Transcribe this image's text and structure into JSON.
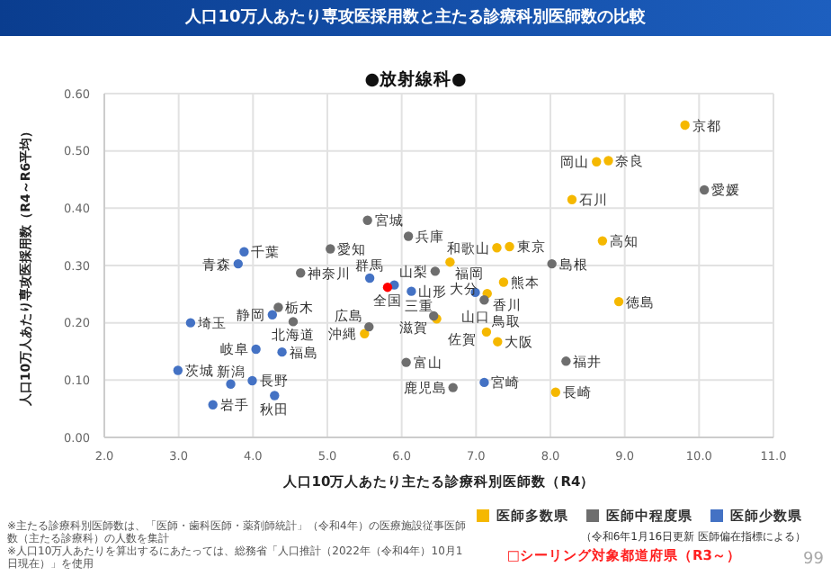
{
  "chart_data": {
    "type": "scatter",
    "title": "人口10万人あたり専攻医採用数と主たる診療科別医師数の比較",
    "subtitle": "●放射線科●",
    "xlabel": "人口10万人あたり主たる診療科別医師数（R4）",
    "ylabel": "人口10万人あたり専攻医採用数（R4～R6平均）",
    "xlim": [
      2,
      11
    ],
    "xticks": [
      {
        "value": 2,
        "label": "2.0"
      },
      {
        "value": 3,
        "label": "3.0"
      },
      {
        "value": 4,
        "label": "4.0"
      },
      {
        "value": 5,
        "label": "5.0"
      },
      {
        "value": 6,
        "label": "6.0"
      },
      {
        "value": 7,
        "label": "7.0"
      },
      {
        "value": 8,
        "label": "8.0"
      },
      {
        "value": 9,
        "label": "9.0"
      },
      {
        "value": 10,
        "label": "10.0"
      },
      {
        "value": 11,
        "label": "11.0"
      }
    ],
    "ylim": [
      0,
      0.6
    ],
    "yticks": [
      {
        "value": 0,
        "label": "0.00"
      },
      {
        "value": 0.1,
        "label": "0.10"
      },
      {
        "value": 0.2,
        "label": "0.20"
      },
      {
        "value": 0.3,
        "label": "0.30"
      },
      {
        "value": 0.4,
        "label": "0.40"
      },
      {
        "value": 0.5,
        "label": "0.50"
      },
      {
        "value": 0.6,
        "label": "0.60"
      }
    ],
    "grid": true,
    "legend": "bottom right",
    "marker": "circle",
    "series": [
      {
        "name": "医師多数県",
        "color": "#f5b800",
        "x": [
          6.65,
          9.81,
          8.62,
          8.78,
          8.29,
          8.7,
          7.45,
          7.28,
          7.37,
          7.15,
          8.92,
          7.14,
          7.29,
          8.07,
          6.47,
          5.5
        ],
        "values": [
          0.306,
          0.545,
          0.481,
          0.483,
          0.415,
          0.343,
          0.333,
          0.331,
          0.271,
          0.251,
          0.237,
          0.184,
          0.167,
          0.079,
          0.207,
          0.181
        ]
      },
      {
        "name": "医師中程度県",
        "color": "#6e6e6e",
        "x": [
          5.54,
          6.09,
          5.04,
          4.64,
          6.45,
          10.07,
          8.02,
          7.11,
          8.21,
          6.43,
          6.69,
          4.34,
          4.54,
          5.56,
          6.06
        ],
        "values": [
          0.379,
          0.351,
          0.329,
          0.287,
          0.29,
          0.432,
          0.303,
          0.24,
          0.133,
          0.212,
          0.087,
          0.227,
          0.202,
          0.193,
          0.131
        ]
      },
      {
        "name": "医師少数県",
        "color": "#4472c4",
        "x": [
          3.88,
          3.8,
          5.57,
          5.9,
          6.13,
          6.99,
          7.11,
          4.26,
          3.16,
          4.04,
          4.39,
          2.99,
          3.7,
          3.99,
          4.29,
          3.46
        ],
        "values": [
          0.324,
          0.303,
          0.278,
          0.266,
          0.255,
          0.253,
          0.096,
          0.214,
          0.2,
          0.154,
          0.149,
          0.117,
          0.093,
          0.099,
          0.073,
          0.057
        ]
      },
      {
        "color": "#ff0000",
        "x": [
          5.81
        ],
        "values": [
          0.262
        ]
      }
    ],
    "annotations": [
      "※主たる診療科別医師数は、「医師・歯科医師・薬剤師統計」（令和4年）の医療施設従事医師数（主たる診療科）の人数を集計",
      "※人口10万人あたりを算出するにあたっては、総務省「人口推計（2022年（令和4年）10月1日現在）」を使用",
      "（令和6年1月16日更新 医師偏在指標による）",
      "□シーリング対象都道府県（R3～）",
      "99",
      {
        "text": "全国",
        "x": 5.81,
        "y": 0.262
      },
      {
        "text": "京都",
        "x": 9.81,
        "y": 0.545
      },
      {
        "text": "岡山",
        "x": 8.62,
        "y": 0.481
      },
      {
        "text": "奈良",
        "x": 8.78,
        "y": 0.483
      },
      {
        "text": "愛媛",
        "x": 10.07,
        "y": 0.432
      },
      {
        "text": "石川",
        "x": 8.29,
        "y": 0.415
      },
      {
        "text": "宮城",
        "x": 5.54,
        "y": 0.379
      },
      {
        "text": "兵庫",
        "x": 6.09,
        "y": 0.351
      },
      {
        "text": "高知",
        "x": 8.7,
        "y": 0.343
      },
      {
        "text": "東京",
        "x": 7.45,
        "y": 0.333
      },
      {
        "text": "和歌山",
        "x": 7.28,
        "y": 0.331
      },
      {
        "text": "愛知",
        "x": 5.04,
        "y": 0.329
      },
      {
        "text": "千葉",
        "x": 3.88,
        "y": 0.324
      },
      {
        "text": "福岡",
        "x": 6.65,
        "y": 0.306
      },
      {
        "text": "青森",
        "x": 3.8,
        "y": 0.303
      },
      {
        "text": "島根",
        "x": 8.02,
        "y": 0.303
      },
      {
        "text": "山梨",
        "x": 6.45,
        "y": 0.29
      },
      {
        "text": "神奈川",
        "x": 4.64,
        "y": 0.287
      },
      {
        "text": "群馬",
        "x": 5.57,
        "y": 0.278
      },
      {
        "text": "熊本",
        "x": 7.37,
        "y": 0.271
      },
      {
        "text": "三重",
        "x": 5.9,
        "y": 0.266
      },
      {
        "text": "山形",
        "x": 6.13,
        "y": 0.255
      },
      {
        "text": "山口",
        "x": 6.99,
        "y": 0.253
      },
      {
        "text": "香川",
        "x": 7.15,
        "y": 0.251
      },
      {
        "text": "大分",
        "x": 7.11,
        "y": 0.24
      },
      {
        "text": "徳島",
        "x": 8.92,
        "y": 0.237
      },
      {
        "text": "栃木",
        "x": 4.34,
        "y": 0.227
      },
      {
        "text": "静岡",
        "x": 4.26,
        "y": 0.214
      },
      {
        "text": "滋賀",
        "x": 6.43,
        "y": 0.212
      },
      {
        "text": "佐賀",
        "x": 6.47,
        "y": 0.207
      },
      {
        "text": "北海道",
        "x": 4.54,
        "y": 0.202
      },
      {
        "text": "埼玉",
        "x": 3.16,
        "y": 0.2
      },
      {
        "text": "広島",
        "x": 5.56,
        "y": 0.193
      },
      {
        "text": "鳥取",
        "x": 7.14,
        "y": 0.184
      },
      {
        "text": "沖縄",
        "x": 5.5,
        "y": 0.181
      },
      {
        "text": "大阪",
        "x": 7.29,
        "y": 0.167
      },
      {
        "text": "岐阜",
        "x": 4.04,
        "y": 0.154
      },
      {
        "text": "福島",
        "x": 4.39,
        "y": 0.149
      },
      {
        "text": "福井",
        "x": 8.21,
        "y": 0.133
      },
      {
        "text": "富山",
        "x": 6.06,
        "y": 0.131
      },
      {
        "text": "茨城",
        "x": 2.99,
        "y": 0.117
      },
      {
        "text": "長野",
        "x": 3.99,
        "y": 0.099
      },
      {
        "text": "宮崎",
        "x": 7.11,
        "y": 0.096
      },
      {
        "text": "新潟",
        "x": 3.7,
        "y": 0.093
      },
      {
        "text": "鹿児島",
        "x": 6.69,
        "y": 0.087
      },
      {
        "text": "長崎",
        "x": 8.07,
        "y": 0.079
      },
      {
        "text": "秋田",
        "x": 4.29,
        "y": 0.073
      },
      {
        "text": "岩手",
        "x": 3.46,
        "y": 0.057
      }
    ]
  }
}
